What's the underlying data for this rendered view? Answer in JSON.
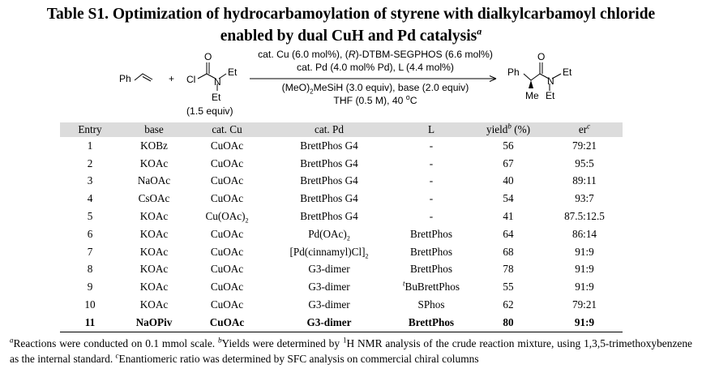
{
  "title": {
    "line1": "Table S1. Optimization of hydrocarbamoylation of styrene with dialkylcarbamoyl chloride",
    "line2": "enabled by dual CuH and Pd catalysis",
    "line2_mark": "a"
  },
  "scheme": {
    "reactant1_ph": "Ph",
    "plus": "+",
    "reactant2": {
      "cl": "Cl",
      "o": "O",
      "n": "N",
      "et1": "Et",
      "et2": "Et"
    },
    "equiv": "(1.5 equiv)",
    "conditions": {
      "line1": "cat. Cu (6.0 mol%), (R)-DTBM-SEGPHOS (6.6 mol%)",
      "line2": "cat. Pd (4.0 mol% Pd), L (4.4 mol%)",
      "line3": "(MeO)2MeSiH (3.0 equiv), base (2.0 equiv)",
      "line4": "THF (0.5 M), 40 oC"
    },
    "product": {
      "ph": "Ph",
      "o": "O",
      "n": "N",
      "me": "Me",
      "et1": "Et",
      "et2": "Et"
    }
  },
  "table": {
    "headers": {
      "entry": "Entry",
      "base": "base",
      "cu": "cat. Cu",
      "pd": "cat. Pd",
      "l": "L",
      "yield": "yield",
      "yield_mark": "b",
      "yield_unit": " (%)",
      "er": "er",
      "er_mark": "c"
    },
    "rows": [
      {
        "entry": "1",
        "base": "KOBz",
        "cu": "CuOAc",
        "pd": "BrettPhos G4",
        "l": "-",
        "yield": "56",
        "er": "79:21"
      },
      {
        "entry": "2",
        "base": "KOAc",
        "cu": "CuOAc",
        "pd": "BrettPhos G4",
        "l": "-",
        "yield": "67",
        "er": "95:5"
      },
      {
        "entry": "3",
        "base": "NaOAc",
        "cu": "CuOAc",
        "pd": "BrettPhos G4",
        "l": "-",
        "yield": "40",
        "er": "89:11"
      },
      {
        "entry": "4",
        "base": "CsOAc",
        "cu": "CuOAc",
        "pd": "BrettPhos G4",
        "l": "-",
        "yield": "54",
        "er": "93:7"
      },
      {
        "entry": "5",
        "base": "KOAc",
        "cu": "Cu(OAc)2",
        "pd": "BrettPhos G4",
        "l": "-",
        "yield": "41",
        "er": "87.5:12.5"
      },
      {
        "entry": "6",
        "base": "KOAc",
        "cu": "CuOAc",
        "pd": "Pd(OAc)2",
        "l": "BrettPhos",
        "yield": "64",
        "er": "86:14"
      },
      {
        "entry": "7",
        "base": "KOAc",
        "cu": "CuOAc",
        "pd": "[Pd(cinnamyl)Cl]2",
        "l": "BrettPhos",
        "yield": "68",
        "er": "91:9"
      },
      {
        "entry": "8",
        "base": "KOAc",
        "cu": "CuOAc",
        "pd": "G3-dimer",
        "l": "BrettPhos",
        "yield": "78",
        "er": "91:9"
      },
      {
        "entry": "9",
        "base": "KOAc",
        "cu": "CuOAc",
        "pd": "G3-dimer",
        "l": "tBuBrettPhos",
        "yield": "55",
        "er": "91:9"
      },
      {
        "entry": "10",
        "base": "KOAc",
        "cu": "CuOAc",
        "pd": "G3-dimer",
        "l": "SPhos",
        "yield": "62",
        "er": "79:21"
      },
      {
        "entry": "11",
        "base": "NaOPiv",
        "cu": "CuOAc",
        "pd": "G3-dimer",
        "l": "BrettPhos",
        "yield": "80",
        "er": "91:9"
      }
    ]
  },
  "footnotes": {
    "a_mark": "a",
    "a": "Reactions were conducted on 0.1 mmol scale. ",
    "b_mark": "b",
    "b_pre": "Yields were determined by ",
    "b_iso": "1",
    "b_post": "H NMR analysis of the crude reaction mixture, using 1,3,5-trimethoxybenzene as the internal standard. ",
    "c_mark": "c",
    "c": "Enantiomeric ratio was determined by SFC analysis on commercial chiral columns"
  }
}
